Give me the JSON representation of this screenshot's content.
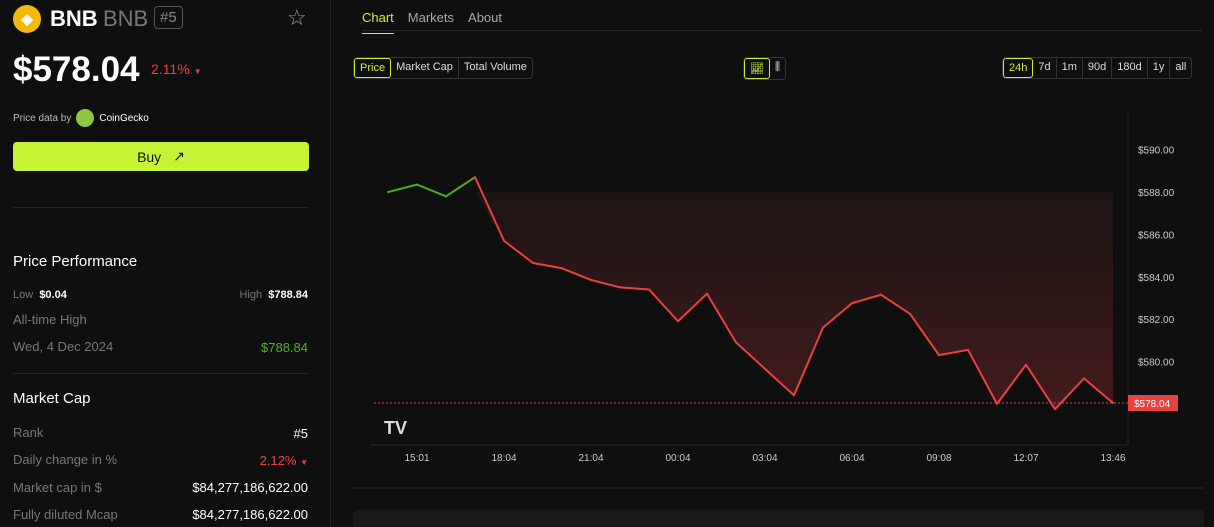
{
  "coin": {
    "name": "BNB",
    "symbol": "BNB",
    "rank_badge": "#5",
    "price": "$578.04",
    "change": "2.11%",
    "price_data_label": "Price data by",
    "provider": "CoinGecko",
    "buy_label": "Buy"
  },
  "performance": {
    "title": "Price Performance",
    "low_label": "Low",
    "low": "$0.04",
    "high_label": "High",
    "high": "$788.84",
    "ath_label": "All-time High",
    "ath_date": "Wed, 4 Dec 2024",
    "ath_value": "$788.84"
  },
  "market_cap": {
    "title": "Market Cap",
    "rows": [
      {
        "label": "Rank",
        "value": "#5"
      },
      {
        "label": "Daily change in %",
        "value": "2.12%"
      },
      {
        "label": "Market cap in $",
        "value": "$84,277,186,622.00"
      },
      {
        "label": "Fully diluted Mcap",
        "value": "$84,277,186,622.00"
      }
    ]
  },
  "tabs": [
    "Chart",
    "Markets",
    "About"
  ],
  "metric_tabs": [
    "Price",
    "Market Cap",
    "Total Volume"
  ],
  "ranges": [
    "24h",
    "7d",
    "1m",
    "90d",
    "180d",
    "1y",
    "all"
  ],
  "colors": {
    "accent": "#c7f335",
    "down": "#e84142",
    "up": "#4caf1f"
  },
  "chart_data": {
    "type": "line",
    "values": [
      588.0,
      588.35,
      587.8,
      588.7,
      585.7,
      584.65,
      584.4,
      583.85,
      583.5,
      583.4,
      581.9,
      583.2,
      580.9,
      579.65,
      578.4,
      581.6,
      582.75,
      583.15,
      582.25,
      580.3,
      580.55,
      578.0,
      579.85,
      577.75,
      579.2,
      578.04
    ],
    "x_ticks": [
      "15:01",
      "18:04",
      "21:04",
      "00:04",
      "03:04",
      "06:04",
      "09:08",
      "12:07",
      "13:46"
    ],
    "y_ticks": [
      "$590.00",
      "$588.00",
      "$586.00",
      "$584.00",
      "$582.00",
      "$580.00"
    ],
    "y_tick_values": [
      590,
      588,
      586,
      584,
      582,
      580
    ],
    "last_label": "$578.04",
    "last_value": 578.04,
    "baseline": 588.0,
    "ylim": [
      576.5,
      591
    ]
  }
}
